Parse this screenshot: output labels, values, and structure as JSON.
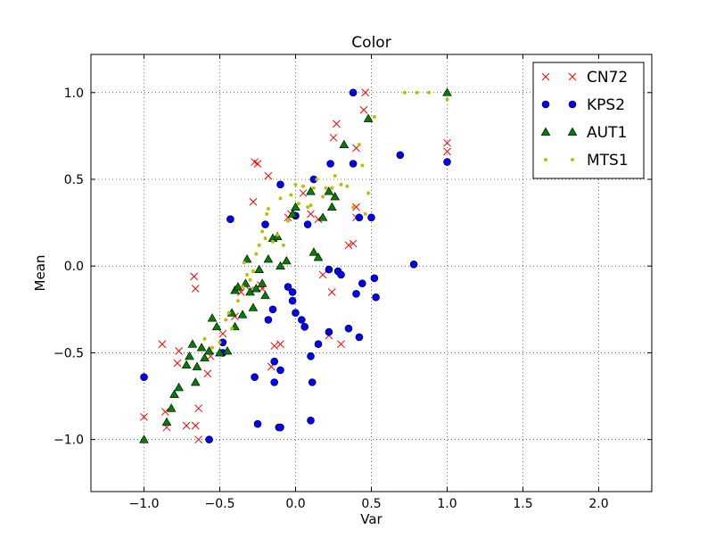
{
  "chart_data": {
    "type": "scatter",
    "title": "Color",
    "xlabel": "Var",
    "ylabel": "Mean",
    "xlim": [
      -1.35,
      2.35
    ],
    "ylim": [
      -1.3,
      1.22
    ],
    "xticks": [
      -1.0,
      -0.5,
      0.0,
      0.5,
      1.0,
      1.5,
      2.0
    ],
    "xtick_labels": [
      "−1.0",
      "−0.5",
      "0.0",
      "0.5",
      "1.0",
      "1.5",
      "2.0"
    ],
    "yticks": [
      -1.0,
      -0.5,
      0.0,
      0.5,
      1.0
    ],
    "ytick_labels": [
      "−1.0",
      "−0.5",
      "0.0",
      "0.5",
      "1.0"
    ],
    "grid": true,
    "legend_position": "top-right",
    "series": [
      {
        "name": "CN72",
        "marker": "x",
        "color": "#ff0000",
        "points": [
          [
            -1.0,
            -0.87
          ],
          [
            -0.86,
            -0.84
          ],
          [
            -0.85,
            -0.93
          ],
          [
            -0.88,
            -0.45
          ],
          [
            -0.77,
            -0.49
          ],
          [
            -0.78,
            -0.56
          ],
          [
            -0.72,
            -0.92
          ],
          [
            -0.66,
            -0.92
          ],
          [
            -0.64,
            -0.82
          ],
          [
            -0.64,
            -1.0
          ],
          [
            -0.67,
            -0.06
          ],
          [
            -0.66,
            -0.13
          ],
          [
            -0.58,
            -0.62
          ],
          [
            -0.56,
            -0.52
          ],
          [
            -0.48,
            -0.39
          ],
          [
            -0.4,
            -0.29
          ],
          [
            -0.36,
            -0.15
          ],
          [
            -0.3,
            -0.14
          ],
          [
            -0.28,
            0.37
          ],
          [
            -0.27,
            0.6
          ],
          [
            -0.25,
            0.59
          ],
          [
            -0.23,
            -0.11
          ],
          [
            -0.22,
            -0.13
          ],
          [
            -0.18,
            0.52
          ],
          [
            -0.16,
            -0.58
          ],
          [
            -0.14,
            -0.46
          ],
          [
            -0.1,
            -0.45
          ],
          [
            -0.05,
            0.28
          ],
          [
            -0.03,
            0.3
          ],
          [
            0.05,
            0.42
          ],
          [
            0.1,
            0.3
          ],
          [
            0.15,
            0.27
          ],
          [
            0.18,
            -0.05
          ],
          [
            0.22,
            -0.4
          ],
          [
            0.24,
            -0.15
          ],
          [
            0.25,
            0.74
          ],
          [
            0.27,
            0.82
          ],
          [
            0.3,
            -0.45
          ],
          [
            0.35,
            0.12
          ],
          [
            0.38,
            0.13
          ],
          [
            0.4,
            0.34
          ],
          [
            0.4,
            0.28
          ],
          [
            0.45,
            0.9
          ],
          [
            0.46,
            1.0
          ],
          [
            0.4,
            0.68
          ],
          [
            1.0,
            0.71
          ],
          [
            1.0,
            0.66
          ]
        ]
      },
      {
        "name": "KPS2",
        "marker": "o",
        "color": "#0000ff",
        "points": [
          [
            -1.0,
            -0.64
          ],
          [
            -0.57,
            -1.0
          ],
          [
            -0.48,
            -0.44
          ],
          [
            -0.48,
            -0.5
          ],
          [
            -0.43,
            0.27
          ],
          [
            -0.27,
            -0.64
          ],
          [
            -0.25,
            -0.91
          ],
          [
            -0.2,
            0.24
          ],
          [
            -0.18,
            -0.31
          ],
          [
            -0.15,
            -0.25
          ],
          [
            -0.14,
            -0.55
          ],
          [
            -0.14,
            -0.67
          ],
          [
            -0.11,
            -0.93
          ],
          [
            -0.1,
            -0.93
          ],
          [
            -0.1,
            -0.6
          ],
          [
            -0.02,
            -0.15
          ],
          [
            -0.02,
            -0.2
          ],
          [
            0.0,
            -0.27
          ],
          [
            0.04,
            -0.31
          ],
          [
            0.06,
            -0.35
          ],
          [
            0.1,
            -0.52
          ],
          [
            0.1,
            -0.89
          ],
          [
            0.11,
            -0.67
          ],
          [
            0.12,
            0.5
          ],
          [
            0.15,
            -0.45
          ],
          [
            0.22,
            -0.38
          ],
          [
            0.22,
            -0.02
          ],
          [
            0.23,
            0.59
          ],
          [
            0.28,
            -0.03
          ],
          [
            0.3,
            -0.05
          ],
          [
            0.35,
            -0.36
          ],
          [
            0.38,
            1.0
          ],
          [
            0.38,
            0.59
          ],
          [
            0.4,
            -0.16
          ],
          [
            0.42,
            0.28
          ],
          [
            0.42,
            -0.41
          ],
          [
            0.44,
            -0.1
          ],
          [
            0.5,
            0.28
          ],
          [
            0.52,
            -0.07
          ],
          [
            0.53,
            -0.18
          ],
          [
            0.69,
            0.64
          ],
          [
            0.78,
            0.01
          ],
          [
            1.0,
            0.6
          ],
          [
            -0.1,
            0.47
          ],
          [
            0.0,
            0.29
          ],
          [
            0.08,
            0.24
          ],
          [
            -0.05,
            -0.12
          ]
        ]
      },
      {
        "name": "AUT1",
        "marker": "^",
        "color": "#007f00",
        "points": [
          [
            -1.0,
            -1.0
          ],
          [
            -0.85,
            -0.9
          ],
          [
            -0.82,
            -0.82
          ],
          [
            -0.8,
            -0.74
          ],
          [
            -0.77,
            -0.7
          ],
          [
            -0.72,
            -0.57
          ],
          [
            -0.7,
            -0.52
          ],
          [
            -0.68,
            -0.45
          ],
          [
            -0.66,
            -0.67
          ],
          [
            -0.65,
            -0.58
          ],
          [
            -0.62,
            -0.47
          ],
          [
            -0.6,
            -0.53
          ],
          [
            -0.57,
            -0.49
          ],
          [
            -0.55,
            -0.3
          ],
          [
            -0.52,
            -0.35
          ],
          [
            -0.5,
            -0.5
          ],
          [
            -0.45,
            -0.49
          ],
          [
            -0.42,
            -0.27
          ],
          [
            -0.4,
            -0.14
          ],
          [
            -0.38,
            -0.12
          ],
          [
            -0.35,
            -0.28
          ],
          [
            -0.33,
            -0.1
          ],
          [
            -0.3,
            -0.15
          ],
          [
            -0.28,
            -0.24
          ],
          [
            -0.26,
            -0.13
          ],
          [
            -0.24,
            -0.02
          ],
          [
            -0.22,
            -0.1
          ],
          [
            -0.2,
            -0.17
          ],
          [
            -0.18,
            0.04
          ],
          [
            -0.15,
            0.16
          ],
          [
            -0.12,
            0.17
          ],
          [
            -0.1,
            0.0
          ],
          [
            -0.06,
            0.03
          ],
          [
            -0.02,
            0.3
          ],
          [
            0.0,
            0.34
          ],
          [
            0.1,
            0.43
          ],
          [
            0.12,
            0.08
          ],
          [
            0.15,
            0.05
          ],
          [
            0.18,
            0.28
          ],
          [
            0.22,
            0.43
          ],
          [
            0.24,
            0.34
          ],
          [
            0.26,
            0.4
          ],
          [
            0.32,
            0.7
          ],
          [
            0.48,
            0.85
          ],
          [
            1.0,
            1.0
          ],
          [
            -0.32,
            0.04
          ],
          [
            -0.4,
            -0.35
          ]
        ]
      },
      {
        "name": "MTS1",
        "marker": ".",
        "color": "#bfbf00",
        "points": [
          [
            -0.55,
            -0.47
          ],
          [
            -0.5,
            -0.44
          ],
          [
            -0.46,
            -0.31
          ],
          [
            -0.44,
            -0.27
          ],
          [
            -0.42,
            -0.36
          ],
          [
            -0.38,
            -0.2
          ],
          [
            -0.35,
            -0.12
          ],
          [
            -0.32,
            -0.05
          ],
          [
            -0.3,
            -0.08
          ],
          [
            -0.28,
            -0.03
          ],
          [
            -0.26,
            0.07
          ],
          [
            -0.24,
            0.12
          ],
          [
            -0.22,
            0.2
          ],
          [
            -0.2,
            0.16
          ],
          [
            -0.19,
            0.3
          ],
          [
            -0.18,
            0.33
          ],
          [
            -0.15,
            0.14
          ],
          [
            -0.12,
            0.18
          ],
          [
            -0.1,
            0.39
          ],
          [
            -0.08,
            0.12
          ],
          [
            -0.05,
            0.26
          ],
          [
            -0.03,
            0.41
          ],
          [
            0.0,
            0.47
          ],
          [
            0.02,
            0.36
          ],
          [
            0.05,
            0.46
          ],
          [
            0.08,
            0.34
          ],
          [
            0.1,
            0.35
          ],
          [
            0.12,
            0.45
          ],
          [
            0.14,
            0.5
          ],
          [
            0.18,
            0.4
          ],
          [
            0.2,
            0.45
          ],
          [
            0.24,
            0.45
          ],
          [
            0.26,
            0.52
          ],
          [
            0.3,
            0.47
          ],
          [
            0.34,
            0.46
          ],
          [
            0.38,
            0.34
          ],
          [
            0.42,
            0.7
          ],
          [
            0.44,
            0.58
          ],
          [
            0.46,
            0.3
          ],
          [
            0.48,
            0.42
          ],
          [
            0.52,
            0.86
          ],
          [
            0.72,
            1.0
          ],
          [
            0.8,
            1.0
          ],
          [
            0.88,
            1.0
          ],
          [
            1.0,
            0.96
          ],
          [
            -0.6,
            -0.42
          ],
          [
            -0.34,
            0.02
          ]
        ]
      }
    ]
  }
}
